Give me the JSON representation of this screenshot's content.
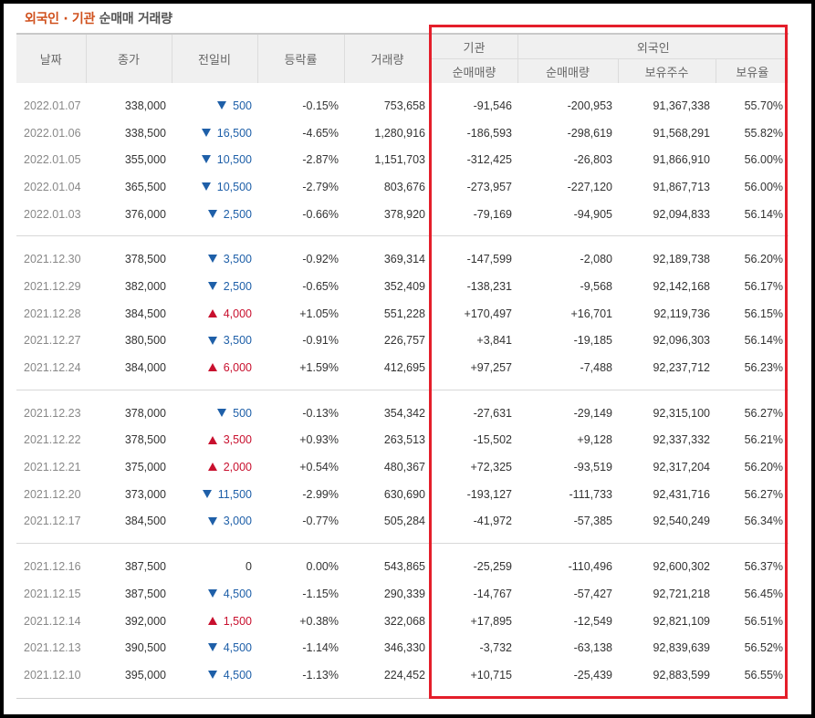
{
  "title": {
    "accent": "외국인 · 기관",
    "rest": " 순매매 거래량"
  },
  "headers": {
    "date": "날짜",
    "close": "종가",
    "change": "전일비",
    "rate": "등락률",
    "volume": "거래량",
    "institution_group": "기관",
    "foreign_group": "외국인",
    "inst_net": "순매매량",
    "foreign_net": "순매매량",
    "holdings": "보유주수",
    "ratio": "보유율"
  },
  "colors": {
    "up": "#c8102e",
    "down": "#1e5fa8",
    "highlight": "#e41e2a"
  },
  "groups": [
    [
      {
        "date": "2022.01.07",
        "close": "338,000",
        "dir": "down",
        "change": "500",
        "rate": "-0.15%",
        "volume": "753,658",
        "inst": "-91,546",
        "frn": "-200,953",
        "hold": "91,367,338",
        "ratio": "55.70%"
      },
      {
        "date": "2022.01.06",
        "close": "338,500",
        "dir": "down",
        "change": "16,500",
        "rate": "-4.65%",
        "volume": "1,280,916",
        "inst": "-186,593",
        "frn": "-298,619",
        "hold": "91,568,291",
        "ratio": "55.82%"
      },
      {
        "date": "2022.01.05",
        "close": "355,000",
        "dir": "down",
        "change": "10,500",
        "rate": "-2.87%",
        "volume": "1,151,703",
        "inst": "-312,425",
        "frn": "-26,803",
        "hold": "91,866,910",
        "ratio": "56.00%"
      },
      {
        "date": "2022.01.04",
        "close": "365,500",
        "dir": "down",
        "change": "10,500",
        "rate": "-2.79%",
        "volume": "803,676",
        "inst": "-273,957",
        "frn": "-227,120",
        "hold": "91,867,713",
        "ratio": "56.00%"
      },
      {
        "date": "2022.01.03",
        "close": "376,000",
        "dir": "down",
        "change": "2,500",
        "rate": "-0.66%",
        "volume": "378,920",
        "inst": "-79,169",
        "frn": "-94,905",
        "hold": "92,094,833",
        "ratio": "56.14%"
      }
    ],
    [
      {
        "date": "2021.12.30",
        "close": "378,500",
        "dir": "down",
        "change": "3,500",
        "rate": "-0.92%",
        "volume": "369,314",
        "inst": "-147,599",
        "frn": "-2,080",
        "hold": "92,189,738",
        "ratio": "56.20%"
      },
      {
        "date": "2021.12.29",
        "close": "382,000",
        "dir": "down",
        "change": "2,500",
        "rate": "-0.65%",
        "volume": "352,409",
        "inst": "-138,231",
        "frn": "-9,568",
        "hold": "92,142,168",
        "ratio": "56.17%"
      },
      {
        "date": "2021.12.28",
        "close": "384,500",
        "dir": "up",
        "change": "4,000",
        "rate": "+1.05%",
        "volume": "551,228",
        "inst": "+170,497",
        "frn": "+16,701",
        "hold": "92,119,736",
        "ratio": "56.15%"
      },
      {
        "date": "2021.12.27",
        "close": "380,500",
        "dir": "down",
        "change": "3,500",
        "rate": "-0.91%",
        "volume": "226,757",
        "inst": "+3,841",
        "frn": "-19,185",
        "hold": "92,096,303",
        "ratio": "56.14%"
      },
      {
        "date": "2021.12.24",
        "close": "384,000",
        "dir": "up",
        "change": "6,000",
        "rate": "+1.59%",
        "volume": "412,695",
        "inst": "+97,257",
        "frn": "-7,488",
        "hold": "92,237,712",
        "ratio": "56.23%"
      }
    ],
    [
      {
        "date": "2021.12.23",
        "close": "378,000",
        "dir": "down",
        "change": "500",
        "rate": "-0.13%",
        "volume": "354,342",
        "inst": "-27,631",
        "frn": "-29,149",
        "hold": "92,315,100",
        "ratio": "56.27%"
      },
      {
        "date": "2021.12.22",
        "close": "378,500",
        "dir": "up",
        "change": "3,500",
        "rate": "+0.93%",
        "volume": "263,513",
        "inst": "-15,502",
        "frn": "+9,128",
        "hold": "92,337,332",
        "ratio": "56.21%"
      },
      {
        "date": "2021.12.21",
        "close": "375,000",
        "dir": "up",
        "change": "2,000",
        "rate": "+0.54%",
        "volume": "480,367",
        "inst": "+72,325",
        "frn": "-93,519",
        "hold": "92,317,204",
        "ratio": "56.20%"
      },
      {
        "date": "2021.12.20",
        "close": "373,000",
        "dir": "down",
        "change": "11,500",
        "rate": "-2.99%",
        "volume": "630,690",
        "inst": "-193,127",
        "frn": "-111,733",
        "hold": "92,431,716",
        "ratio": "56.27%"
      },
      {
        "date": "2021.12.17",
        "close": "384,500",
        "dir": "down",
        "change": "3,000",
        "rate": "-0.77%",
        "volume": "505,284",
        "inst": "-41,972",
        "frn": "-57,385",
        "hold": "92,540,249",
        "ratio": "56.34%"
      }
    ],
    [
      {
        "date": "2021.12.16",
        "close": "387,500",
        "dir": "none",
        "change": "0",
        "rate": "0.00%",
        "volume": "543,865",
        "inst": "-25,259",
        "frn": "-110,496",
        "hold": "92,600,302",
        "ratio": "56.37%"
      },
      {
        "date": "2021.12.15",
        "close": "387,500",
        "dir": "down",
        "change": "4,500",
        "rate": "-1.15%",
        "volume": "290,339",
        "inst": "-14,767",
        "frn": "-57,427",
        "hold": "92,721,218",
        "ratio": "56.45%"
      },
      {
        "date": "2021.12.14",
        "close": "392,000",
        "dir": "up",
        "change": "1,500",
        "rate": "+0.38%",
        "volume": "322,068",
        "inst": "+17,895",
        "frn": "-12,549",
        "hold": "92,821,109",
        "ratio": "56.51%"
      },
      {
        "date": "2021.12.13",
        "close": "390,500",
        "dir": "down",
        "change": "4,500",
        "rate": "-1.14%",
        "volume": "346,330",
        "inst": "-3,732",
        "frn": "-63,138",
        "hold": "92,839,639",
        "ratio": "56.52%"
      },
      {
        "date": "2021.12.10",
        "close": "395,000",
        "dir": "down",
        "change": "4,500",
        "rate": "-1.13%",
        "volume": "224,452",
        "inst": "+10,715",
        "frn": "-25,439",
        "hold": "92,883,599",
        "ratio": "56.55%"
      }
    ]
  ]
}
